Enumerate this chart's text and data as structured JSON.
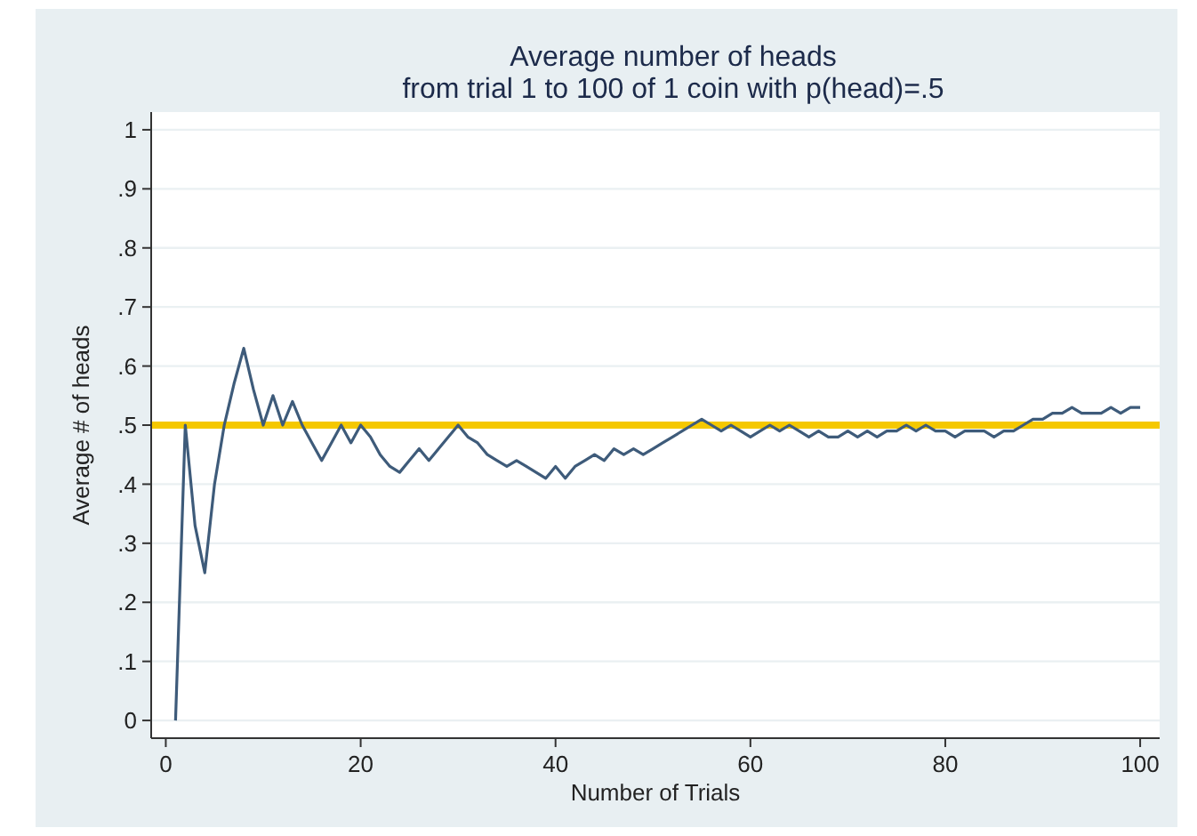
{
  "chart_data": {
    "type": "line",
    "title": "Average number of heads",
    "subtitle": "from trial 1 to 100 of 1 coin with p(head)=.5",
    "xlabel": "Number of Trials",
    "ylabel": "Average # of heads",
    "x": [
      1,
      2,
      3,
      4,
      5,
      6,
      7,
      8,
      9,
      10,
      11,
      12,
      13,
      14,
      15,
      16,
      17,
      18,
      19,
      20,
      21,
      22,
      23,
      24,
      25,
      26,
      27,
      28,
      29,
      30,
      31,
      32,
      33,
      34,
      35,
      36,
      37,
      38,
      39,
      40,
      41,
      42,
      43,
      44,
      45,
      46,
      47,
      48,
      49,
      50,
      51,
      52,
      53,
      54,
      55,
      56,
      57,
      58,
      59,
      60,
      61,
      62,
      63,
      64,
      65,
      66,
      67,
      68,
      69,
      70,
      71,
      72,
      73,
      74,
      75,
      76,
      77,
      78,
      79,
      80,
      81,
      82,
      83,
      84,
      85,
      86,
      87,
      88,
      89,
      90,
      91,
      92,
      93,
      94,
      95,
      96,
      97,
      98,
      99,
      100
    ],
    "series": [
      {
        "color": "#3e5b7a",
        "values": [
          0,
          0.5,
          0.33,
          0.25,
          0.4,
          0.5,
          0.57,
          0.63,
          0.56,
          0.5,
          0.55,
          0.5,
          0.54,
          0.5,
          0.47,
          0.44,
          0.47,
          0.5,
          0.47,
          0.5,
          0.48,
          0.45,
          0.43,
          0.42,
          0.44,
          0.46,
          0.44,
          0.46,
          0.48,
          0.5,
          0.48,
          0.47,
          0.45,
          0.44,
          0.43,
          0.44,
          0.43,
          0.42,
          0.41,
          0.43,
          0.41,
          0.43,
          0.44,
          0.45,
          0.44,
          0.46,
          0.45,
          0.46,
          0.45,
          0.46,
          0.47,
          0.48,
          0.49,
          0.5,
          0.51,
          0.5,
          0.49,
          0.5,
          0.49,
          0.48,
          0.49,
          0.5,
          0.49,
          0.5,
          0.49,
          0.48,
          0.49,
          0.48,
          0.48,
          0.49,
          0.48,
          0.49,
          0.48,
          0.49,
          0.49,
          0.5,
          0.49,
          0.5,
          0.49,
          0.49,
          0.48,
          0.49,
          0.49,
          0.49,
          0.48,
          0.49,
          0.49,
          0.5,
          0.51,
          0.51,
          0.52,
          0.52,
          0.53,
          0.52,
          0.52,
          0.52,
          0.53,
          0.52,
          0.53,
          0.53
        ]
      }
    ],
    "xlim": [
      -1.5,
      102
    ],
    "xticks": [
      0,
      20,
      40,
      60,
      80,
      100
    ],
    "ylim": [
      -0.03,
      1.03
    ],
    "yticks": [
      {
        "value": 0,
        "label": "0"
      },
      {
        "value": 0.1,
        "label": ".1"
      },
      {
        "value": 0.2,
        "label": ".2"
      },
      {
        "value": 0.3,
        "label": ".3"
      },
      {
        "value": 0.4,
        "label": ".4"
      },
      {
        "value": 0.5,
        "label": ".5"
      },
      {
        "value": 0.6,
        "label": ".6"
      },
      {
        "value": 0.7,
        "label": ".7"
      },
      {
        "value": 0.8,
        "label": ".8"
      },
      {
        "value": 0.9,
        "label": ".9"
      },
      {
        "value": 1,
        "label": "1"
      }
    ],
    "grid": "y",
    "marker": "none",
    "line_style": "solid",
    "ref_lines": [
      {
        "axis": "y",
        "value": 0.5,
        "color": "#f5c800"
      }
    ]
  }
}
